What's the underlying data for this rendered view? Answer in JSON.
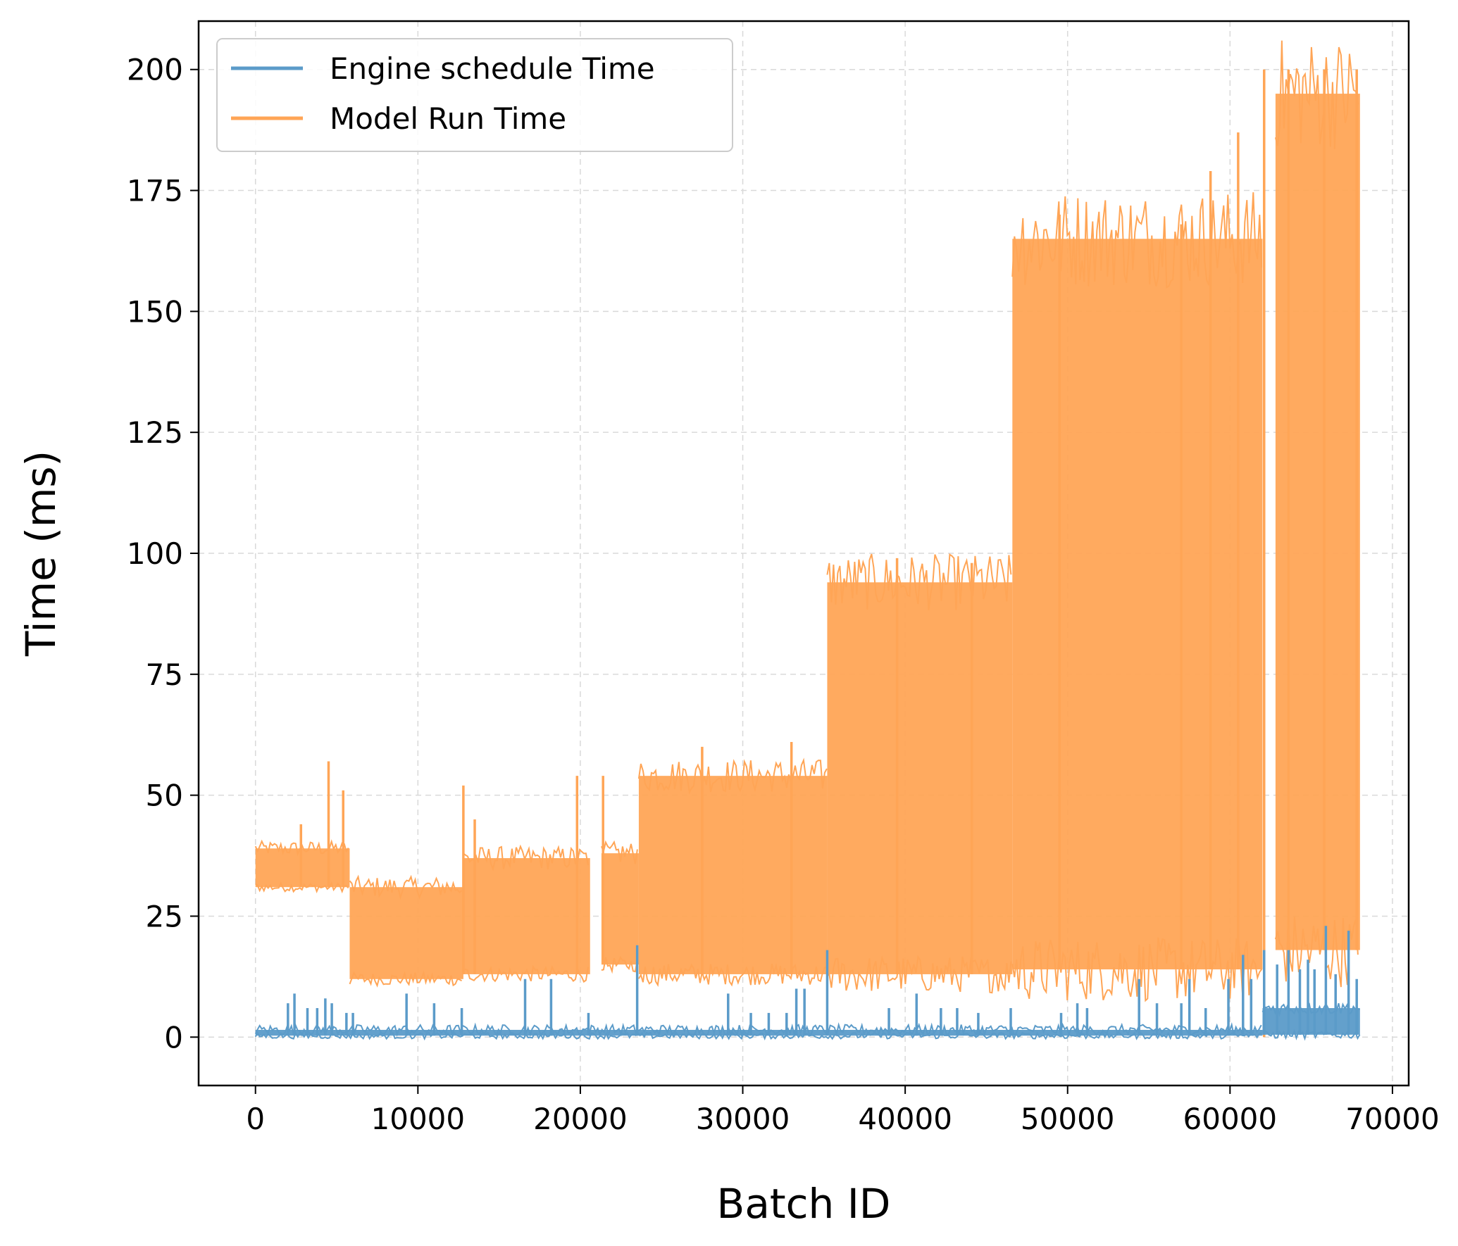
{
  "chart_data": {
    "type": "line",
    "xlabel": "Batch ID",
    "ylabel": "Time (ms)",
    "xlim": [
      -3500,
      71000
    ],
    "ylim": [
      -10,
      210
    ],
    "xticks": [
      0,
      10000,
      20000,
      30000,
      40000,
      50000,
      60000,
      70000
    ],
    "xtick_labels": [
      "0",
      "10000",
      "20000",
      "30000",
      "40000",
      "50000",
      "60000",
      "70000"
    ],
    "yticks": [
      0,
      25,
      50,
      75,
      100,
      125,
      150,
      175,
      200
    ],
    "ytick_labels": [
      "0",
      "25",
      "50",
      "75",
      "100",
      "125",
      "150",
      "175",
      "200"
    ],
    "grid": true,
    "legend_position": "upper-left",
    "series": [
      {
        "name": "Engine schedule Time",
        "color": "#5b9bc9",
        "segments": [
          {
            "x_start": 0,
            "x_end": 62000,
            "low": 0.3,
            "high": 1.5
          },
          {
            "x_start": 62000,
            "x_end": 68000,
            "low": 0.5,
            "high": 6
          }
        ],
        "spikes": [
          [
            2000,
            7
          ],
          [
            2400,
            9
          ],
          [
            3200,
            6
          ],
          [
            3800,
            6
          ],
          [
            4300,
            8
          ],
          [
            4700,
            7
          ],
          [
            5600,
            5
          ],
          [
            6000,
            5
          ],
          [
            9300,
            9
          ],
          [
            11000,
            7
          ],
          [
            12700,
            6
          ],
          [
            16600,
            12
          ],
          [
            18200,
            12
          ],
          [
            20500,
            5
          ],
          [
            23500,
            19
          ],
          [
            29100,
            9
          ],
          [
            30500,
            5
          ],
          [
            31600,
            5
          ],
          [
            32700,
            5
          ],
          [
            33300,
            10
          ],
          [
            33800,
            10
          ],
          [
            35200,
            18
          ],
          [
            39000,
            6
          ],
          [
            40700,
            9
          ],
          [
            42200,
            6
          ],
          [
            43200,
            6
          ],
          [
            44500,
            5
          ],
          [
            46500,
            6
          ],
          [
            49600,
            5
          ],
          [
            50600,
            7
          ],
          [
            51200,
            6
          ],
          [
            54400,
            12
          ],
          [
            55500,
            7
          ],
          [
            57000,
            7
          ],
          [
            57500,
            12
          ],
          [
            58500,
            6
          ],
          [
            59900,
            12
          ],
          [
            60800,
            17
          ],
          [
            61300,
            12
          ],
          [
            62100,
            18
          ],
          [
            62900,
            15
          ],
          [
            63600,
            18
          ],
          [
            64300,
            14
          ],
          [
            64800,
            16
          ],
          [
            65200,
            14
          ],
          [
            65900,
            23
          ],
          [
            66500,
            13
          ],
          [
            67300,
            22
          ],
          [
            67800,
            12
          ]
        ]
      },
      {
        "name": "Model Run Time",
        "color": "#ffa556",
        "segments": [
          {
            "x_start": 0,
            "x_end": 5800,
            "low": 31,
            "high": 39
          },
          {
            "x_start": 5800,
            "x_end": 12800,
            "low": 12,
            "high": 31
          },
          {
            "x_start": 12800,
            "x_end": 20600,
            "low": 13,
            "high": 37
          },
          {
            "x_start": 21300,
            "x_end": 23600,
            "low": 15,
            "high": 38
          },
          {
            "x_start": 23600,
            "x_end": 35200,
            "low": 13,
            "high": 54
          },
          {
            "x_start": 35200,
            "x_end": 46600,
            "low": 13,
            "high": 94
          },
          {
            "x_start": 46600,
            "x_end": 62000,
            "low": 14,
            "high": 165
          },
          {
            "x_start": 62800,
            "x_end": 68000,
            "low": 18,
            "high": 195
          }
        ],
        "spikes": [
          [
            2800,
            44
          ],
          [
            4500,
            57
          ],
          [
            5400,
            51
          ],
          [
            12800,
            52
          ],
          [
            13500,
            45
          ],
          [
            19800,
            54
          ],
          [
            21400,
            54
          ],
          [
            27500,
            60
          ],
          [
            33000,
            61
          ],
          [
            39500,
            99
          ],
          [
            44100,
            98
          ],
          [
            49500,
            170
          ],
          [
            57000,
            168
          ],
          [
            58800,
            179
          ],
          [
            60500,
            187
          ],
          [
            62100,
            200
          ],
          [
            63600,
            200
          ],
          [
            65800,
            200
          ],
          [
            67800,
            200
          ]
        ]
      }
    ]
  }
}
